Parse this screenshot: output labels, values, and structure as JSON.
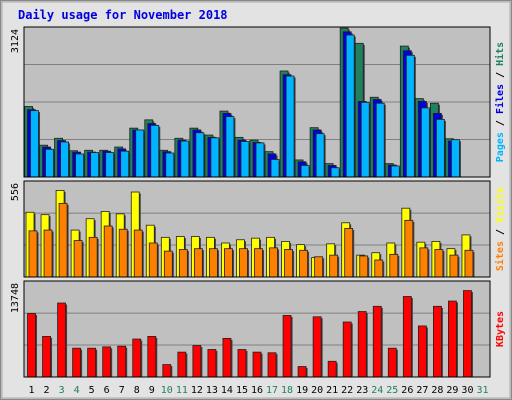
{
  "chart_data": {
    "type": "bar",
    "title": "Daily usage for November 2018",
    "categories": [
      "1",
      "2",
      "3",
      "4",
      "5",
      "6",
      "7",
      "8",
      "9",
      "10",
      "11",
      "12",
      "13",
      "14",
      "15",
      "16",
      "17",
      "18",
      "19",
      "20",
      "21",
      "22",
      "23",
      "24",
      "25",
      "26",
      "27",
      "28",
      "29",
      "30",
      "31"
    ],
    "weekend_days": [
      "3",
      "4",
      "10",
      "11",
      "17",
      "18",
      "24",
      "25",
      "31"
    ],
    "panels": [
      {
        "name": "pages-files-hits",
        "ymax": 3124,
        "ymax_label": "3124",
        "right_label_parts": [
          {
            "text": "Pages",
            "color": "#00b4ff"
          },
          {
            "text": " / ",
            "color": "#000000"
          },
          {
            "text": "Files",
            "color": "#0000e0"
          },
          {
            "text": " / ",
            "color": "#000000"
          },
          {
            "text": "Hits",
            "color": "#208060"
          }
        ],
        "series": [
          {
            "name": "Hits",
            "color": "#208060",
            "values": [
              1530,
              690,
              840,
              570,
              580,
              580,
              650,
              1060,
              1240,
              580,
              840,
              1060,
              910,
              1430,
              860,
              800,
              550,
              2300,
              370,
              1070,
              290,
              3230,
              2900,
              1730,
              290,
              2840,
              1700,
              1600,
              830,
              null,
              null
            ]
          },
          {
            "name": "Files",
            "color": "#0000e0",
            "values": [
              1460,
              650,
              790,
              540,
              540,
              560,
              610,
              1020,
              1160,
              550,
              800,
              1020,
              860,
              1380,
              800,
              750,
              500,
              2220,
              330,
              1020,
              250,
              3150,
              1640,
              1680,
              260,
              2740,
              1640,
              1380,
              780,
              null,
              null
            ]
          },
          {
            "name": "Pages",
            "color": "#00b4ff",
            "values": [
              1440,
              600,
              760,
              500,
              530,
              530,
              560,
              1020,
              1120,
              520,
              780,
              960,
              850,
              1310,
              770,
              740,
              380,
              2190,
              250,
              940,
              200,
              3080,
              1620,
              1600,
              240,
              2640,
              1500,
              1250,
              810,
              null,
              null
            ]
          }
        ]
      },
      {
        "name": "visits-sites",
        "ymax": 556,
        "ymax_label": "556",
        "right_label_parts": [
          {
            "text": "Sites",
            "color": "#ff8000"
          },
          {
            "text": " / ",
            "color": "#000000"
          },
          {
            "text": "Visits",
            "color": "#ffff00"
          }
        ],
        "series": [
          {
            "name": "Visits",
            "color": "#ffff00",
            "values": [
              400,
              385,
              535,
              290,
              360,
              405,
              390,
              525,
              320,
              245,
              250,
              250,
              245,
              210,
              230,
              240,
              245,
              220,
              200,
              120,
              205,
              335,
              135,
              150,
              210,
              425,
              215,
              220,
              175,
              260,
              null
            ]
          },
          {
            "name": "Sites",
            "color": "#ff8000",
            "values": [
              285,
              290,
              455,
              225,
              245,
              315,
              295,
              290,
              210,
              160,
              170,
              175,
              175,
              175,
              175,
              175,
              180,
              170,
              165,
              125,
              135,
              300,
              130,
              105,
              140,
              350,
              180,
              170,
              135,
              165,
              null
            ]
          }
        ]
      },
      {
        "name": "kbytes",
        "ymax": 13748,
        "ymax_label": "13748",
        "right_label_parts": [
          {
            "text": "KBytes",
            "color": "#ff0000"
          }
        ],
        "series": [
          {
            "name": "KBytes",
            "color": "#ff0000",
            "values": [
              9700,
              6200,
              11300,
              4400,
              4400,
              4600,
              4700,
              5800,
              6200,
              1900,
              3800,
              4800,
              4200,
              5900,
              4200,
              3800,
              3700,
              9400,
              1600,
              9200,
              2400,
              8400,
              10000,
              10800,
              4400,
              12300,
              7800,
              10800,
              11600,
              13200,
              null
            ]
          }
        ]
      }
    ]
  }
}
